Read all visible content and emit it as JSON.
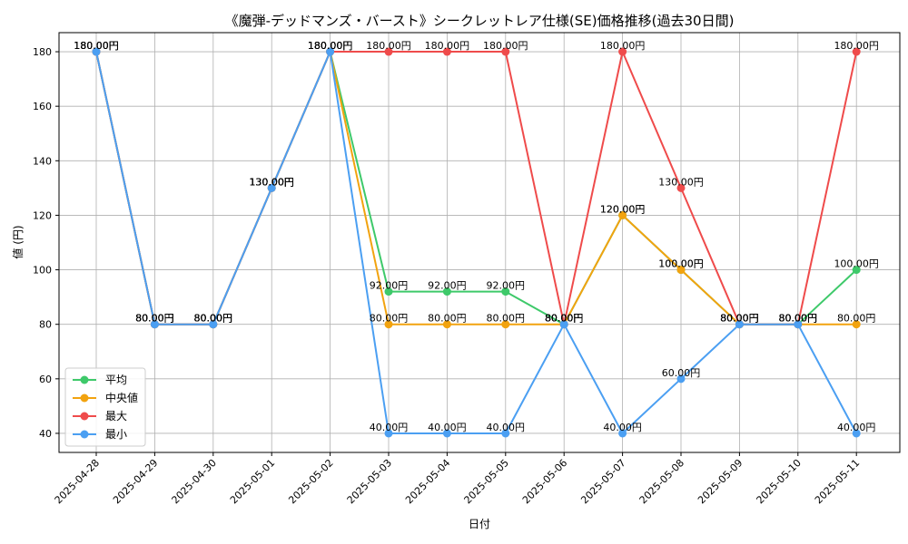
{
  "chart_data": {
    "type": "line",
    "title": "《魔弾-デッドマンズ・バースト》シークレットレア仕様(SE)価格推移(過去30日間)",
    "xlabel": "日付",
    "ylabel": "値 (円)",
    "categories": [
      "2025-04-28",
      "2025-04-29",
      "2025-04-30",
      "2025-05-01",
      "2025-05-02",
      "2025-05-03",
      "2025-05-04",
      "2025-05-05",
      "2025-05-06",
      "2025-05-07",
      "2025-05-08",
      "2025-05-09",
      "2025-05-10",
      "2025-05-11"
    ],
    "ylim": [
      33,
      187
    ],
    "yticks": [
      40,
      60,
      80,
      100,
      120,
      140,
      160,
      180
    ],
    "grid": true,
    "legend_position": "lower-left",
    "label_suffix": "円",
    "series": [
      {
        "name": "平均",
        "color": "#3ec96a",
        "values": [
          180,
          80,
          80,
          130,
          180,
          92,
          92,
          92,
          80,
          120,
          100,
          80,
          80,
          100
        ]
      },
      {
        "name": "中央値",
        "color": "#f2a30f",
        "values": [
          180,
          80,
          80,
          130,
          180,
          80,
          80,
          80,
          80,
          120,
          100,
          80,
          80,
          80
        ]
      },
      {
        "name": "最大",
        "color": "#ef4b4b",
        "values": [
          180,
          80,
          80,
          130,
          180,
          180,
          180,
          180,
          80,
          180,
          130,
          80,
          80,
          180
        ]
      },
      {
        "name": "最小",
        "color": "#4b9ff2",
        "values": [
          180,
          80,
          80,
          130,
          180,
          40,
          40,
          40,
          80,
          40,
          60,
          80,
          80,
          40
        ]
      }
    ]
  }
}
